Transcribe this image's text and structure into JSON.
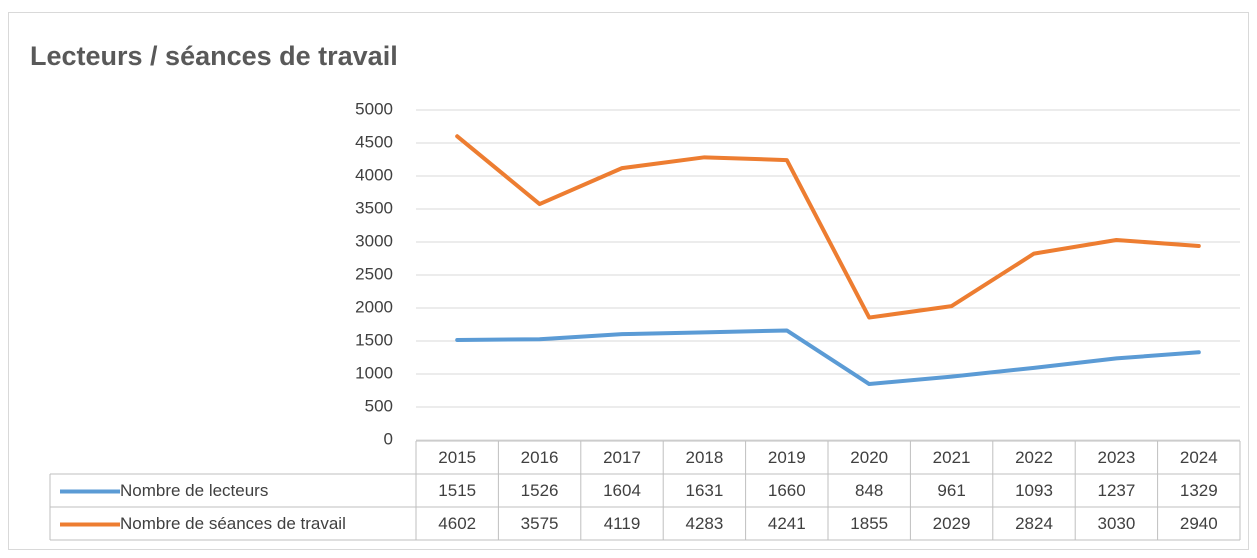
{
  "chart_data": {
    "type": "line",
    "title": "Lecteurs / séances de travail",
    "categories": [
      "2015",
      "2016",
      "2017",
      "2018",
      "2019",
      "2020",
      "2021",
      "2022",
      "2023",
      "2024"
    ],
    "series": [
      {
        "name": "Nombre de lecteurs",
        "color": "#5b9bd5",
        "values": [
          1515,
          1526,
          1604,
          1631,
          1660,
          848,
          961,
          1093,
          1237,
          1329
        ]
      },
      {
        "name": "Nombre de séances de travail",
        "color": "#ed7d31",
        "values": [
          4602,
          3575,
          4119,
          4283,
          4241,
          1855,
          2029,
          2824,
          3030,
          2940
        ]
      }
    ],
    "ylim": [
      0,
      5000
    ],
    "yticks": [
      0,
      500,
      1000,
      1500,
      2000,
      2500,
      3000,
      3500,
      4000,
      4500,
      5000
    ],
    "grid": true
  }
}
